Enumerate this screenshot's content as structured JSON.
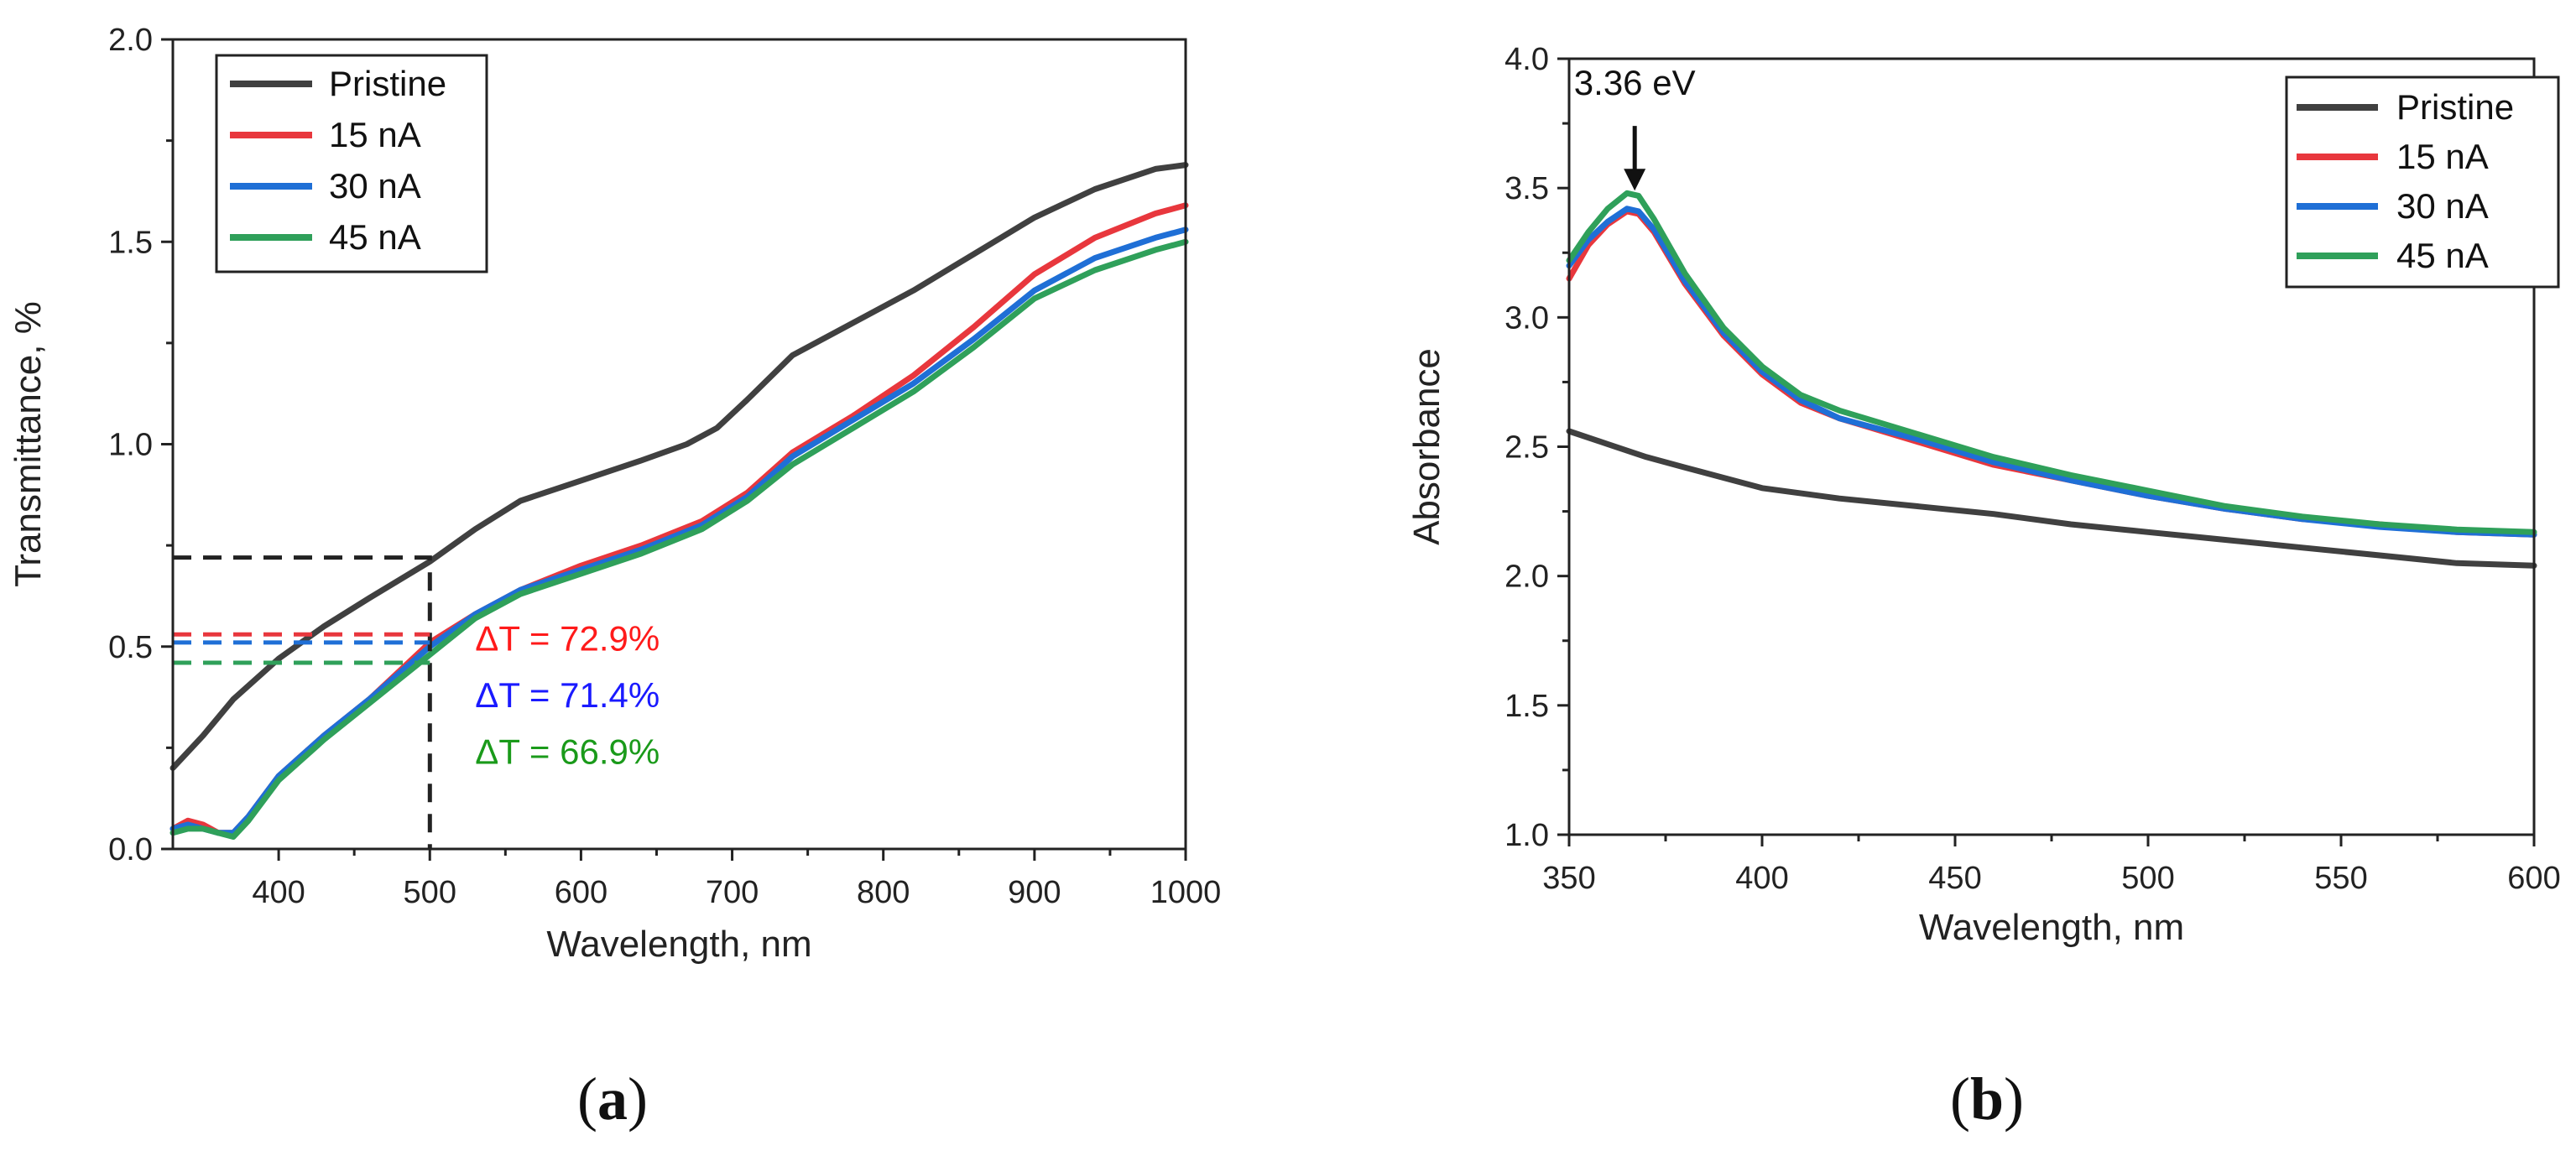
{
  "colors": {
    "pristine": "#404040",
    "nA15": "#e8373d",
    "nA30": "#1f6fd6",
    "nA45": "#2fa05a",
    "delta15": "#ff1a1a",
    "delta30": "#1a1aff",
    "delta45": "#1a9a1a",
    "axis": "#222222"
  },
  "panel_labels": {
    "a": {
      "open": "(",
      "letter": "a",
      "close": ")"
    },
    "b": {
      "open": "(",
      "letter": "b",
      "close": ")"
    }
  },
  "chart_data": [
    {
      "id": "a",
      "type": "line",
      "title": "",
      "xlabel": "Wavelength, nm",
      "ylabel": "Transmittance, %",
      "xlim": [
        330,
        1000
      ],
      "ylim": [
        0.0,
        2.0
      ],
      "xticks": [
        400,
        500,
        600,
        700,
        800,
        900,
        1000
      ],
      "xtick_labels": [
        "400",
        "500",
        "600",
        "700",
        "800",
        "900",
        "1000"
      ],
      "yticks": [
        0.0,
        0.5,
        1.0,
        1.5,
        2.0
      ],
      "ytick_labels": [
        "0.0",
        "0.5",
        "1.0",
        "1.5",
        "2.0"
      ],
      "legend": {
        "position": "top-left",
        "entries": [
          "Pristine",
          "15 nA",
          "30 nA",
          "45 nA"
        ]
      },
      "series": [
        {
          "name": "Pristine",
          "color_key": "pristine",
          "x": [
            330,
            350,
            370,
            400,
            430,
            460,
            500,
            530,
            560,
            600,
            640,
            670,
            690,
            710,
            740,
            780,
            820,
            860,
            900,
            940,
            980,
            1000
          ],
          "y": [
            0.2,
            0.28,
            0.37,
            0.47,
            0.55,
            0.62,
            0.71,
            0.79,
            0.86,
            0.91,
            0.96,
            1.0,
            1.04,
            1.11,
            1.22,
            1.3,
            1.38,
            1.47,
            1.56,
            1.63,
            1.68,
            1.69
          ]
        },
        {
          "name": "15 nA",
          "color_key": "nA15",
          "x": [
            330,
            340,
            350,
            360,
            370,
            380,
            400,
            430,
            460,
            500,
            530,
            560,
            600,
            640,
            680,
            710,
            740,
            780,
            820,
            860,
            900,
            940,
            980,
            1000
          ],
          "y": [
            0.05,
            0.07,
            0.06,
            0.04,
            0.04,
            0.08,
            0.18,
            0.28,
            0.37,
            0.51,
            0.58,
            0.64,
            0.7,
            0.75,
            0.81,
            0.88,
            0.98,
            1.07,
            1.17,
            1.29,
            1.42,
            1.51,
            1.57,
            1.59
          ]
        },
        {
          "name": "30 nA",
          "color_key": "nA30",
          "x": [
            330,
            340,
            350,
            360,
            370,
            380,
            400,
            430,
            460,
            500,
            530,
            560,
            600,
            640,
            680,
            710,
            740,
            780,
            820,
            860,
            900,
            940,
            980,
            1000
          ],
          "y": [
            0.05,
            0.06,
            0.05,
            0.04,
            0.04,
            0.08,
            0.18,
            0.28,
            0.37,
            0.5,
            0.58,
            0.64,
            0.69,
            0.74,
            0.8,
            0.87,
            0.97,
            1.06,
            1.15,
            1.26,
            1.38,
            1.46,
            1.51,
            1.53
          ]
        },
        {
          "name": "45 nA",
          "color_key": "nA45",
          "x": [
            330,
            340,
            350,
            360,
            370,
            380,
            400,
            430,
            460,
            500,
            530,
            560,
            600,
            640,
            680,
            710,
            740,
            780,
            820,
            860,
            900,
            940,
            980,
            1000
          ],
          "y": [
            0.04,
            0.05,
            0.05,
            0.04,
            0.03,
            0.07,
            0.17,
            0.27,
            0.36,
            0.48,
            0.57,
            0.63,
            0.68,
            0.73,
            0.79,
            0.86,
            0.95,
            1.04,
            1.13,
            1.24,
            1.36,
            1.43,
            1.48,
            1.5
          ]
        }
      ],
      "guides": [
        {
          "name": "pristine-guide",
          "color_key": "axis",
          "x": [
            330,
            500,
            500
          ],
          "y": [
            0.72,
            0.72,
            0.0
          ]
        },
        {
          "name": "guide-15",
          "color_key": "nA15",
          "x": [
            330,
            500
          ],
          "y": [
            0.53,
            0.53
          ]
        },
        {
          "name": "guide-30",
          "color_key": "nA30",
          "x": [
            330,
            500
          ],
          "y": [
            0.51,
            0.51
          ]
        },
        {
          "name": "guide-45",
          "color_key": "nA45",
          "x": [
            330,
            500
          ],
          "y": [
            0.46,
            0.46
          ]
        }
      ],
      "annotations": [
        {
          "name": "delta-15",
          "text": "ΔT = 72.9%",
          "color_key": "delta15",
          "x": 530,
          "y": 0.49
        },
        {
          "name": "delta-30",
          "text": "ΔT = 71.4%",
          "color_key": "delta30",
          "x": 530,
          "y": 0.35
        },
        {
          "name": "delta-45",
          "text": "ΔT = 66.9%",
          "color_key": "delta45",
          "x": 530,
          "y": 0.21
        }
      ]
    },
    {
      "id": "b",
      "type": "line",
      "title": "",
      "xlabel": "Wavelength, nm",
      "ylabel": "Absorbance",
      "xlim": [
        350,
        600
      ],
      "ylim": [
        1.0,
        4.0
      ],
      "xticks": [
        350,
        400,
        450,
        500,
        550,
        600
      ],
      "xtick_labels": [
        "350",
        "400",
        "450",
        "500",
        "550",
        "600"
      ],
      "yticks": [
        1.0,
        1.5,
        2.0,
        2.5,
        3.0,
        3.5,
        4.0
      ],
      "ytick_labels": [
        "1.0",
        "1.5",
        "2.0",
        "2.5",
        "3.0",
        "3.5",
        "4.0"
      ],
      "legend": {
        "position": "top-right",
        "entries": [
          "Pristine",
          "15 nA",
          "30 nA",
          "45 nA"
        ]
      },
      "series": [
        {
          "name": "Pristine",
          "color_key": "pristine",
          "x": [
            350,
            360,
            370,
            380,
            390,
            400,
            420,
            440,
            460,
            480,
            500,
            520,
            540,
            560,
            580,
            600
          ],
          "y": [
            2.56,
            2.51,
            2.46,
            2.42,
            2.38,
            2.34,
            2.3,
            2.27,
            2.24,
            2.2,
            2.17,
            2.14,
            2.11,
            2.08,
            2.05,
            2.04
          ]
        },
        {
          "name": "15 nA",
          "color_key": "nA15",
          "x": [
            350,
            355,
            360,
            365,
            368,
            372,
            380,
            390,
            400,
            410,
            420,
            440,
            460,
            480,
            500,
            520,
            540,
            560,
            580,
            600
          ],
          "y": [
            3.15,
            3.28,
            3.36,
            3.41,
            3.4,
            3.33,
            3.13,
            2.93,
            2.78,
            2.67,
            2.61,
            2.52,
            2.43,
            2.37,
            2.31,
            2.26,
            2.22,
            2.2,
            2.17,
            2.16
          ]
        },
        {
          "name": "30 nA",
          "color_key": "nA30",
          "x": [
            350,
            355,
            360,
            365,
            368,
            372,
            380,
            390,
            400,
            410,
            420,
            440,
            460,
            480,
            500,
            520,
            540,
            560,
            580,
            600
          ],
          "y": [
            3.2,
            3.3,
            3.37,
            3.42,
            3.41,
            3.34,
            3.14,
            2.94,
            2.79,
            2.68,
            2.61,
            2.53,
            2.44,
            2.37,
            2.31,
            2.26,
            2.22,
            2.19,
            2.17,
            2.16
          ]
        },
        {
          "name": "45 nA",
          "color_key": "nA45",
          "x": [
            350,
            355,
            360,
            365,
            368,
            372,
            380,
            390,
            400,
            410,
            420,
            440,
            460,
            480,
            500,
            520,
            540,
            560,
            580,
            600
          ],
          "y": [
            3.22,
            3.33,
            3.42,
            3.48,
            3.47,
            3.38,
            3.17,
            2.96,
            2.81,
            2.7,
            2.64,
            2.55,
            2.46,
            2.39,
            2.33,
            2.27,
            2.23,
            2.2,
            2.18,
            2.17
          ]
        }
      ],
      "annotations": [
        {
          "name": "peak-label",
          "text": "3.36 eV",
          "color_key": "axis",
          "x": 367,
          "y": 3.86
        }
      ],
      "arrow": {
        "x": 367,
        "y_from": 3.74,
        "y_to": 3.49
      }
    }
  ]
}
